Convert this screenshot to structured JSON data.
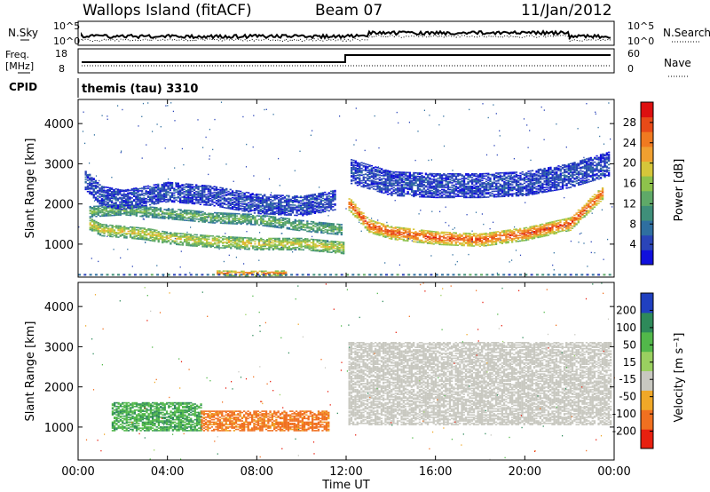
{
  "header": {
    "site": "Wallops Island (fitACF)",
    "beam": "Beam 07",
    "date": "11/Jan/2012"
  },
  "labels": {
    "nsky": "N.Sky",
    "nsearch": "N.Search",
    "freq": "Freq.",
    "mhz": "[MHz]",
    "nave": "Nave",
    "cpid": "CPID",
    "cpid_value": "themis (tau) 3310",
    "x_axis": "Time UT",
    "y_axis": "Slant Range [km]",
    "power_cb": "Power [dB]",
    "velocity_cb": "Velocity [m s⁻¹]"
  },
  "top_axes": {
    "noise_left": [
      "10^5",
      "10^0"
    ],
    "noise_right": [
      "10^5",
      "10^0"
    ],
    "freq_left": [
      "18",
      "8"
    ],
    "nave_right": [
      "60",
      "0"
    ]
  },
  "chart_data": [
    {
      "type": "heatmap",
      "title": "Power",
      "xlabel": "Time UT",
      "ylabel": "Slant Range [km]",
      "x_ticks": [
        "00:00",
        "04:00",
        "08:00",
        "12:00",
        "16:00",
        "20:00",
        "00:00"
      ],
      "xlim_hours": [
        0,
        24
      ],
      "ylim": [
        180,
        4600
      ],
      "y_ticks": [
        1000,
        2000,
        3000,
        4000
      ],
      "colorbar": {
        "label": "Power [dB]",
        "ticks": [
          4,
          8,
          12,
          16,
          20,
          24,
          28
        ],
        "colors": [
          "#1010dd",
          "#2a44b8",
          "#2f6fa0",
          "#3f8f7a",
          "#5fa968",
          "#8ec24c",
          "#d6c63a",
          "#f0a030",
          "#f07a20",
          "#e84a18",
          "#dd1010"
        ]
      },
      "bands": [
        {
          "range_km": [
            [
              0.5,
              1500
            ],
            [
              1,
              1350
            ],
            [
              2,
              1300
            ],
            [
              3,
              1250
            ],
            [
              4,
              1150
            ],
            [
              5,
              1100
            ],
            [
              6,
              1060
            ],
            [
              7,
              1030
            ],
            [
              8,
              1000
            ],
            [
              9,
              1000
            ],
            [
              10,
              1000
            ],
            [
              11,
              950
            ],
            [
              11.9,
              900
            ]
          ],
          "width_km": 300,
          "level": 0.62
        },
        {
          "range_km": [
            [
              0.5,
              1800
            ],
            [
              2,
              1850
            ],
            [
              4,
              1750
            ],
            [
              6,
              1650
            ],
            [
              8,
              1600
            ],
            [
              10,
              1450
            ],
            [
              11.8,
              1350
            ]
          ],
          "width_km": 260,
          "level": 0.45
        },
        {
          "range_km": [
            [
              0.3,
              2600
            ],
            [
              1,
              2200
            ],
            [
              2,
              2100
            ],
            [
              4,
              2300
            ],
            [
              6,
              2200
            ],
            [
              8,
              2000
            ],
            [
              10,
              1950
            ],
            [
              11.5,
              2100
            ]
          ],
          "width_km": 500,
          "level": 0.12
        },
        {
          "range_km": [
            [
              12.1,
              2000
            ],
            [
              13,
              1450
            ],
            [
              14,
              1280
            ],
            [
              16,
              1150
            ],
            [
              18,
              1100
            ],
            [
              20,
              1250
            ],
            [
              22,
              1500
            ],
            [
              23.5,
              2300
            ]
          ],
          "width_km": 330,
          "level": 0.92
        },
        {
          "range_km": [
            [
              12.2,
              2800
            ],
            [
              14,
              2500
            ],
            [
              16,
              2450
            ],
            [
              18,
              2450
            ],
            [
              20,
              2500
            ],
            [
              22,
              2700
            ],
            [
              23.8,
              3000
            ]
          ],
          "width_km": 600,
          "level": 0.12
        },
        {
          "range_km": [
            [
              6.2,
              270
            ],
            [
              7.5,
              260
            ],
            [
              9.3,
              270
            ]
          ],
          "width_km": 120,
          "level": 0.85
        }
      ]
    },
    {
      "type": "heatmap",
      "title": "Velocity",
      "xlabel": "Time UT",
      "ylabel": "Slant Range [km]",
      "x_ticks": [
        "00:00",
        "04:00",
        "08:00",
        "12:00",
        "16:00",
        "20:00",
        "00:00"
      ],
      "xlim_hours": [
        0,
        24
      ],
      "ylim": [
        180,
        4600
      ],
      "y_ticks": [
        1000,
        2000,
        3000,
        4000
      ],
      "colorbar": {
        "label": "Velocity [m s⁻¹]",
        "ticks": [
          200,
          100,
          50,
          15,
          -15,
          -50,
          -100,
          -200
        ],
        "colors": [
          "#2040c0",
          "#2e8a5a",
          "#52b84a",
          "#9ad060",
          "#c8c8c0",
          "#f0a828",
          "#f07020",
          "#e82010"
        ]
      },
      "regions": [
        {
          "hours": [
            1.5,
            5.5
          ],
          "range_km": [
            900,
            1600
          ],
          "velocity": 70
        },
        {
          "hours": [
            5.5,
            11.2
          ],
          "range_km": [
            900,
            1400
          ],
          "velocity": -40
        },
        {
          "hours": [
            12.1,
            23.8
          ],
          "range_km": [
            1050,
            3100
          ],
          "velocity": 0
        }
      ]
    }
  ],
  "colors": {
    "noise_line": "#000000",
    "freq_line": "#000000"
  }
}
